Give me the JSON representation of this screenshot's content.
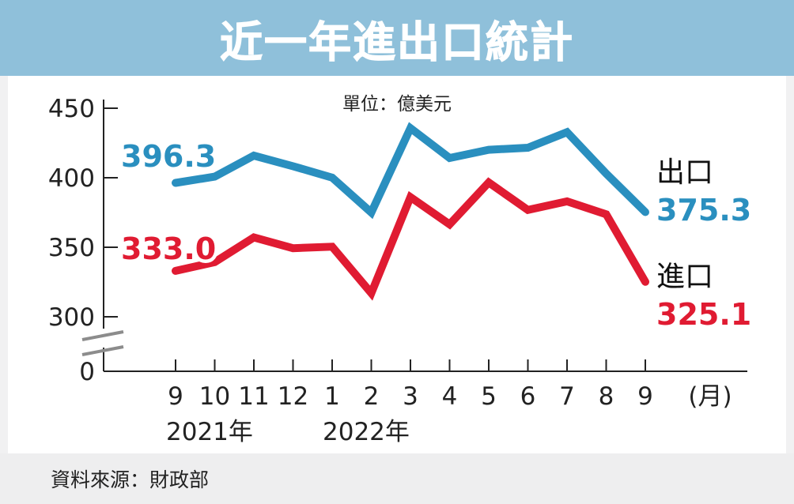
{
  "header": {
    "title": "近一年進出口統計"
  },
  "chart_data": {
    "type": "line",
    "unit_label": "單位：億美元",
    "categories": [
      "9",
      "10",
      "11",
      "12",
      "1",
      "2",
      "3",
      "4",
      "5",
      "6",
      "7",
      "8",
      "9"
    ],
    "x_unit": "(月)",
    "year_labels": [
      {
        "label": "2021年",
        "at_category": 0
      },
      {
        "label": "2022年",
        "at_category": 4
      }
    ],
    "y_ticks": [
      0,
      300,
      350,
      400,
      450
    ],
    "ylim": [
      300,
      450
    ],
    "y_axis_break": true,
    "series": [
      {
        "name": "出口",
        "color": "#2a8fbf",
        "values": [
          396.3,
          400.8,
          415.9,
          408.3,
          400.1,
          375.0,
          435.7,
          414.2,
          420.1,
          421.6,
          432.8,
          403.0,
          375.3
        ],
        "start_label": "396.3",
        "end_label": "375.3"
      },
      {
        "name": "進口",
        "color": "#e01b32",
        "values": [
          333.0,
          339.3,
          357.1,
          349.3,
          350.4,
          317.0,
          386.1,
          366.5,
          396.6,
          376.8,
          383.0,
          373.7,
          325.1
        ],
        "start_label": "333.0",
        "end_label": "325.1"
      }
    ],
    "grid": false
  },
  "footer": {
    "source": "資料來源：財政部"
  }
}
